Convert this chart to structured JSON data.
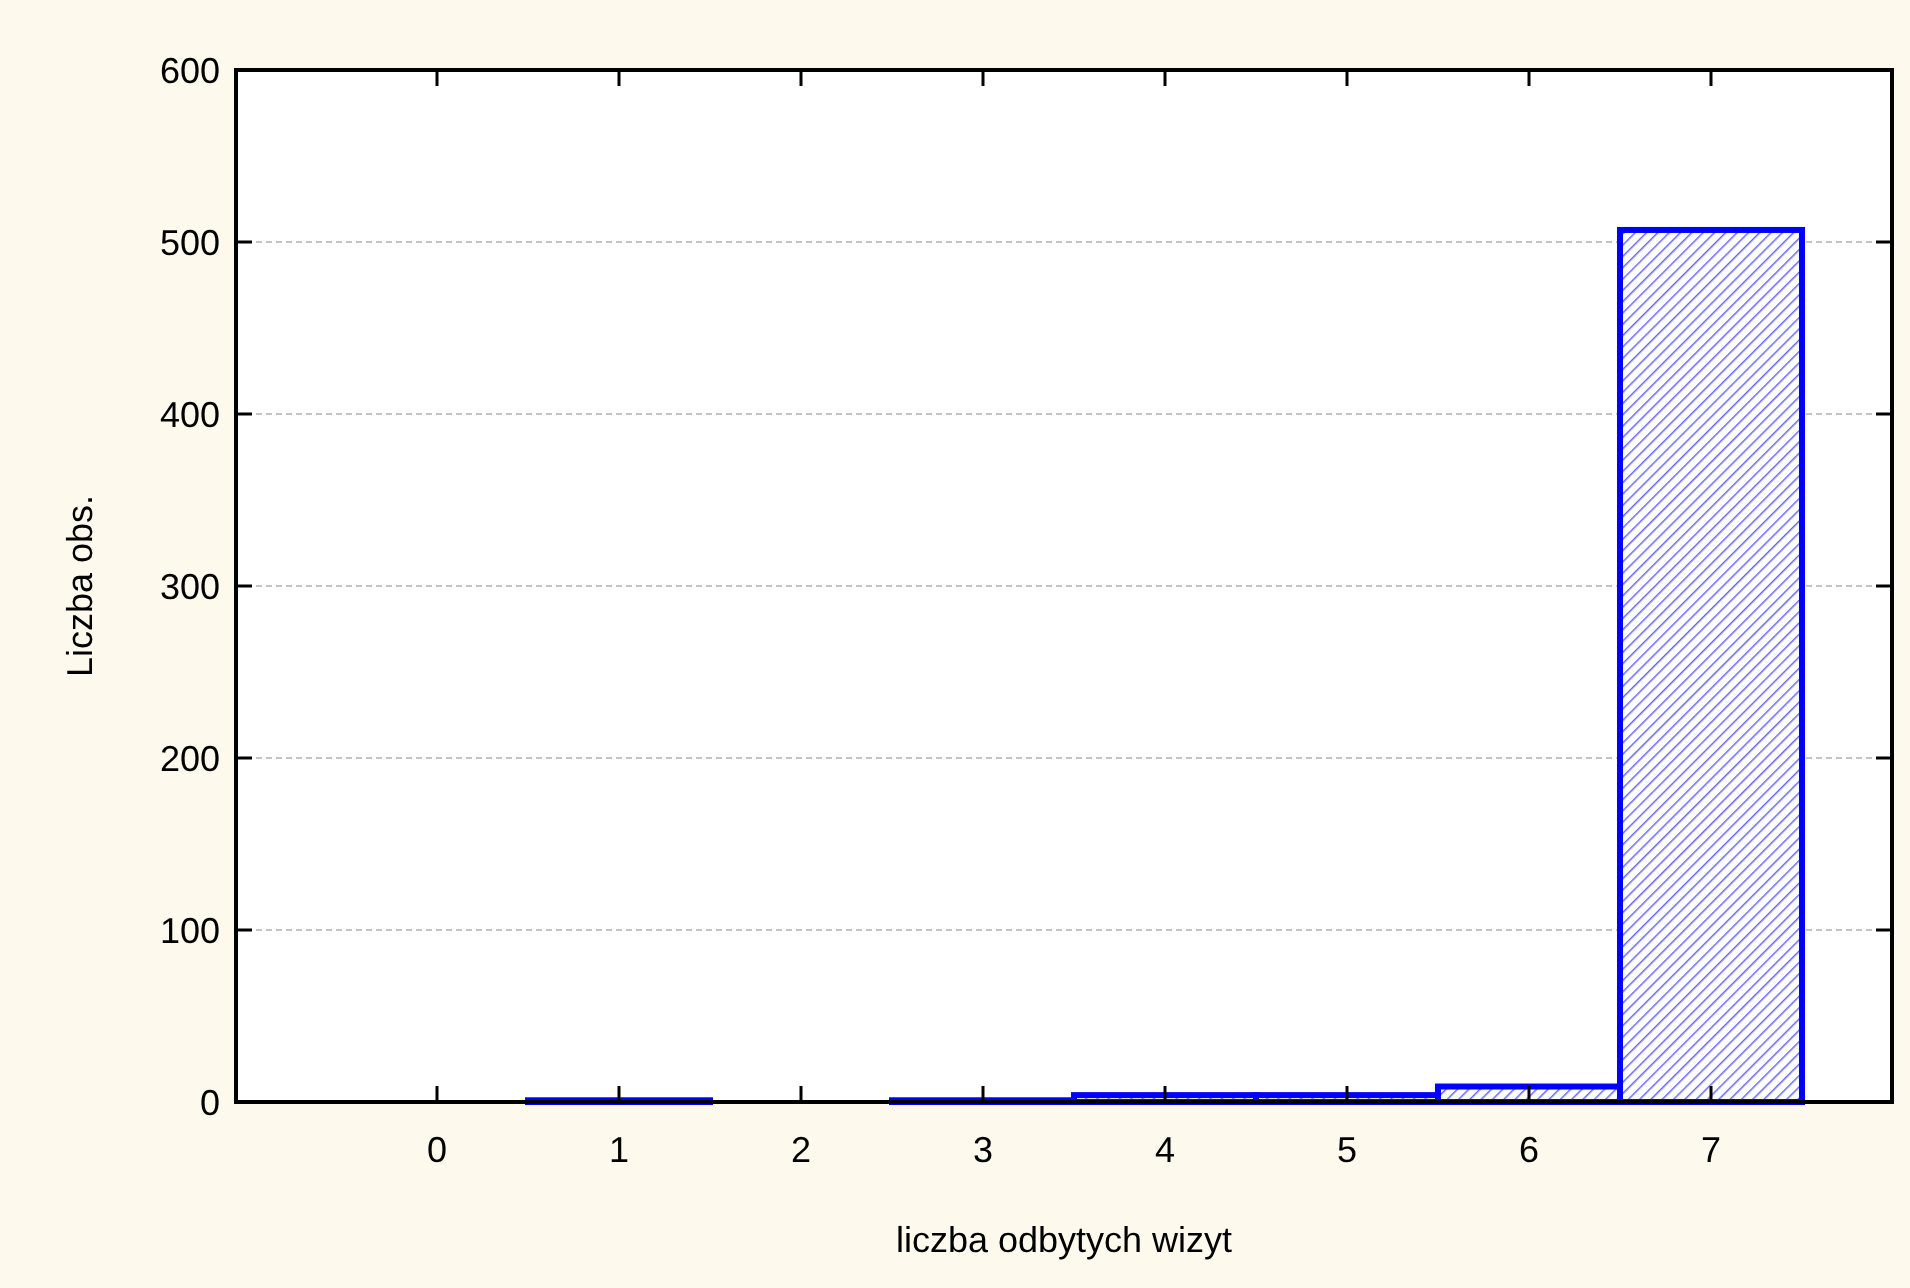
{
  "chart_data": {
    "type": "bar",
    "xlabel": "liczba odbytych wizyt",
    "ylabel": "Liczba obs.",
    "categories": [
      "0",
      "1",
      "2",
      "3",
      "4",
      "5",
      "6",
      "7"
    ],
    "values": [
      0,
      1,
      0,
      1,
      4,
      4,
      9,
      507
    ],
    "color": "#0000ff",
    "ylim": [
      0,
      600
    ],
    "yticks": [
      0,
      100,
      200,
      300,
      400,
      500,
      600
    ],
    "grid": "y"
  }
}
